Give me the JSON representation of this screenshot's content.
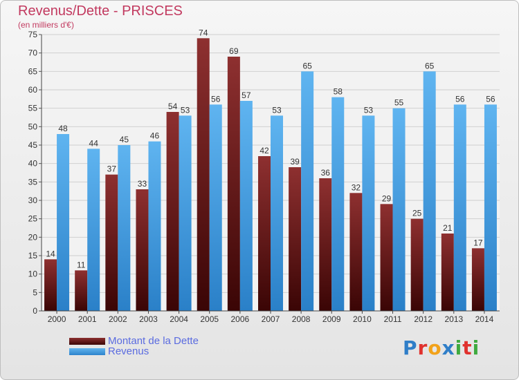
{
  "title": "Revenus/Dette - PRISCES",
  "subtitle": "(en milliers d'€)",
  "legend": {
    "debt_label": "Montant de la Dette",
    "revenue_label": "Revenus"
  },
  "logo": {
    "text": "Proxiti",
    "letters": [
      "P",
      "r",
      "o",
      "x",
      "i",
      "t",
      "i"
    ],
    "colors": [
      "#2f7ec8",
      "#e0322e",
      "#f2a21a",
      "#2f7ec8",
      "#3faa3f",
      "#e0322e",
      "#3faa3f"
    ]
  },
  "colors": {
    "title": "#c2395f",
    "debt": "#6e1f1f",
    "revenue": "#4aa3e6",
    "legend_text": "#5a6be0"
  },
  "chart_data": {
    "type": "bar",
    "title": "Revenus/Dette - PRISCES",
    "subtitle": "(en milliers d'€)",
    "categories": [
      "2000",
      "2001",
      "2002",
      "2003",
      "2004",
      "2005",
      "2006",
      "2007",
      "2008",
      "2009",
      "2010",
      "2011",
      "2012",
      "2013",
      "2014"
    ],
    "series": [
      {
        "name": "Montant de la Dette",
        "values": [
          14,
          11,
          37,
          33,
          54,
          74,
          69,
          42,
          39,
          36,
          32,
          29,
          25,
          21,
          17
        ]
      },
      {
        "name": "Revenus",
        "values": [
          48,
          44,
          45,
          46,
          53,
          56,
          57,
          53,
          65,
          58,
          53,
          55,
          65,
          56,
          56
        ]
      }
    ],
    "ylim": [
      0,
      75
    ],
    "yticks": [
      0,
      5,
      10,
      15,
      20,
      25,
      30,
      35,
      40,
      45,
      50,
      55,
      60,
      65,
      70,
      75
    ],
    "grid": true,
    "legend_position": "bottom-left"
  }
}
